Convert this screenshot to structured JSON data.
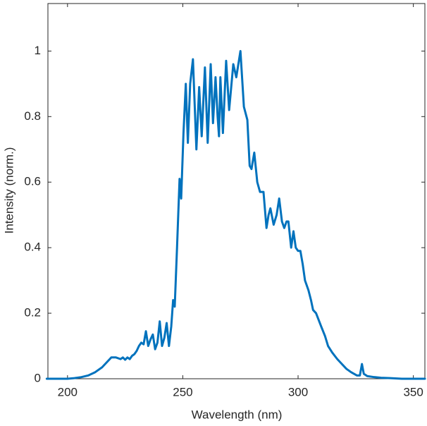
{
  "chart_data": {
    "type": "line",
    "xlabel": "Wavelength (nm)",
    "ylabel": "Intensity (norm.)",
    "xlim": [
      191.5,
      355
    ],
    "ylim": [
      0,
      1.145
    ],
    "xticks": [
      200,
      250,
      300,
      350
    ],
    "yticks": [
      0,
      0.2,
      0.4,
      0.6,
      0.8,
      1
    ],
    "series": [
      {
        "color": "#0072bd",
        "x": [
          191,
          195,
          200,
          203,
          206,
          209,
          212,
          215,
          217,
          219,
          221,
          223,
          224,
          225,
          226,
          227,
          228,
          229,
          230,
          231,
          232,
          233,
          234,
          235,
          236,
          237,
          238,
          239,
          240,
          241,
          242,
          243,
          244,
          245,
          245.8,
          246.5,
          247.5,
          248.6,
          249.3,
          250.3,
          251.3,
          252.2,
          253.2,
          254.4,
          255.9,
          257.1,
          258.2,
          259.6,
          260.8,
          262.1,
          263.1,
          264.2,
          265.1,
          265.7,
          266.3,
          267.4,
          268.8,
          270.1,
          271.9,
          273.2,
          275,
          276.5,
          278,
          279,
          279.8,
          281,
          282.3,
          283.5,
          285,
          286.3,
          287.2,
          288,
          289.4,
          290.7,
          291.8,
          293,
          294,
          295,
          295.8,
          297,
          298,
          299,
          300,
          301,
          302,
          303,
          304.5,
          305.6,
          306.5,
          307.8,
          310,
          311.7,
          313,
          314.8,
          317,
          319,
          321,
          323,
          325.5,
          326.8,
          327.7,
          328.5,
          330,
          333,
          336,
          340,
          345,
          350,
          355
        ],
        "values": [
          0,
          0,
          0,
          0.002,
          0.005,
          0.01,
          0.02,
          0.035,
          0.05,
          0.065,
          0.065,
          0.06,
          0.065,
          0.058,
          0.065,
          0.06,
          0.07,
          0.075,
          0.085,
          0.1,
          0.11,
          0.105,
          0.145,
          0.1,
          0.12,
          0.135,
          0.09,
          0.11,
          0.175,
          0.1,
          0.125,
          0.17,
          0.1,
          0.16,
          0.24,
          0.22,
          0.4,
          0.61,
          0.55,
          0.75,
          0.9,
          0.72,
          0.9,
          0.975,
          0.7,
          0.89,
          0.74,
          0.95,
          0.72,
          0.96,
          0.78,
          0.92,
          0.8,
          0.74,
          0.92,
          0.75,
          0.97,
          0.82,
          0.96,
          0.92,
          1.0,
          0.83,
          0.79,
          0.65,
          0.64,
          0.69,
          0.6,
          0.57,
          0.57,
          0.46,
          0.5,
          0.52,
          0.47,
          0.5,
          0.55,
          0.48,
          0.46,
          0.48,
          0.48,
          0.4,
          0.45,
          0.4,
          0.39,
          0.39,
          0.35,
          0.3,
          0.27,
          0.24,
          0.21,
          0.2,
          0.16,
          0.13,
          0.1,
          0.08,
          0.06,
          0.045,
          0.03,
          0.02,
          0.01,
          0.01,
          0.045,
          0.015,
          0.008,
          0.005,
          0.003,
          0.002,
          0,
          0,
          0
        ]
      }
    ]
  }
}
